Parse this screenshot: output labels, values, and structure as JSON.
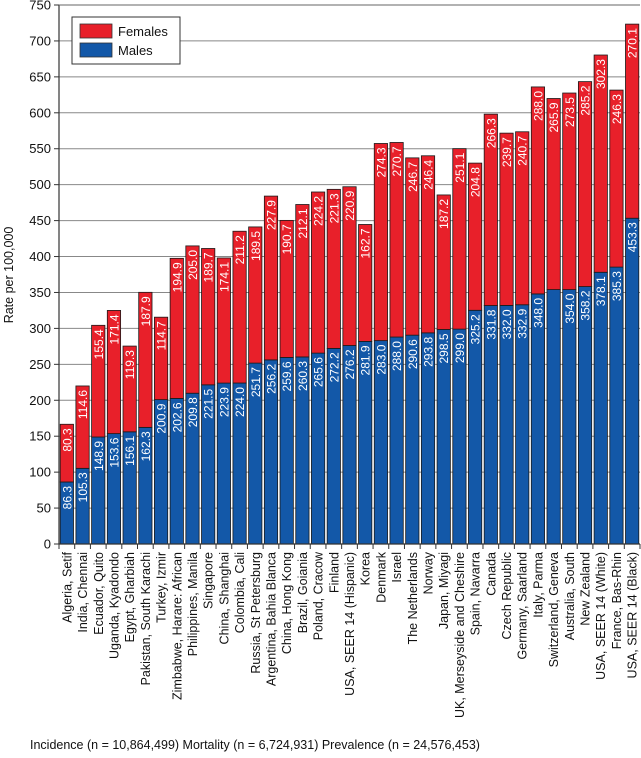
{
  "chart_data": {
    "type": "bar",
    "stacked": true,
    "title": "",
    "xlabel": "",
    "ylabel": "Rate per 100,000",
    "ylim": [
      0,
      750
    ],
    "yticks": [
      0,
      50,
      100,
      150,
      200,
      250,
      300,
      350,
      400,
      450,
      500,
      550,
      600,
      650,
      700,
      750
    ],
    "grid": true,
    "legend": {
      "placement": "top-left",
      "entries": [
        "Females",
        "Males"
      ]
    },
    "categories": [
      "Algeria, Setif",
      "India, Chennai",
      "Ecuador, Quito",
      "Uganda, Kyadondo",
      "Egypt, Gharbiah",
      "Pakistan, South Karachi",
      "Turkey, Izmir",
      "Zimbabwe, Harare: African",
      "Philippines, Manila",
      "Singapore",
      "China, Shanghai",
      "Colombia, Cali",
      "Russia, St Petersburg",
      "Argentina, Bahia Blanca",
      "China, Hong Kong",
      "Brazil, Goiania",
      "Poland, Cracow",
      "Finland",
      "USA, SEER 14 (Hispanic)",
      "Korea",
      "Denmark",
      "Israel",
      "The Netherlands",
      "Norway",
      "Japan, Miyagi",
      "UK, Merseyside and Cheshire",
      "Spain, Navarra",
      "Canada",
      "Czech Republic",
      "Germany, Saarland",
      "Italy, Parma",
      "Switzerland, Geneva",
      "Australia, South",
      "New Zealand",
      "USA, SEER 14 (White)",
      "France, Bas-Rhin",
      "USA, SEER 14 (Black)"
    ],
    "series": [
      {
        "name": "Males",
        "color": "#1358a8",
        "values": [
          86.3,
          105.3,
          148.9,
          153.6,
          156.1,
          162.3,
          200.9,
          202.6,
          209.8,
          221.5,
          223.9,
          224.0,
          251.7,
          256.2,
          259.6,
          260.3,
          265.6,
          272.2,
          276.2,
          281.9,
          283.0,
          288.0,
          290.6,
          293.8,
          298.5,
          299.0,
          325.2,
          331.8,
          332.0,
          332.9,
          348.0,
          354.0,
          354.0,
          358.2,
          378.1,
          385.3,
          453.3
        ],
        "labels": [
          "86.3",
          "105.3",
          "148.9",
          "153.6",
          "156.1",
          "162.3",
          "200.9",
          "202.6",
          "209.8",
          "221.5",
          "223.9",
          "224.0",
          "251.7",
          "256.2",
          "259.6",
          "260.3",
          "265.6",
          "272.2",
          "276.2",
          "281.9",
          "283.0",
          "288.0",
          "290.6",
          "293.8",
          "298.5",
          "299.0",
          "325.2",
          "331.8",
          "332.0",
          "332.9",
          "348.0",
          "",
          "354.0",
          "358.2",
          "378.1",
          "385.3",
          "453.3"
        ]
      },
      {
        "name": "Females",
        "color": "#e8202a",
        "values": [
          80.3,
          114.6,
          155.4,
          171.4,
          119.3,
          187.9,
          114.7,
          194.9,
          205.0,
          189.7,
          174.1,
          211.2,
          189.5,
          227.9,
          190.7,
          212.1,
          224.2,
          221.3,
          220.9,
          162.7,
          274.3,
          270.7,
          246.7,
          246.4,
          187.2,
          251.1,
          204.8,
          266.3,
          239.7,
          240.7,
          288.0,
          265.9,
          273.5,
          285.2,
          302.3,
          246.3,
          270.1
        ],
        "labels": [
          "80.3",
          "114.6",
          "155.4",
          "171.4",
          "119.3",
          "187.9",
          "114.7",
          "194.9",
          "205.0",
          "189.7",
          "174.1",
          "211.2",
          "189.5",
          "227.9",
          "190.7",
          "212.1",
          "224.2",
          "221.3",
          "220.9",
          "162.7",
          "274.3",
          "270.7",
          "246.7",
          "246.4",
          "187.2",
          "251.1",
          "204.8",
          "266.3",
          "239.7",
          "240.7",
          "288.0",
          "265.9",
          "273.5",
          "285.2",
          "302.3",
          "246.3",
          "270.1"
        ]
      }
    ],
    "footnote": "Incidence (n = 10,864,499) Mortality (n = 6,724,931) Prevalence (n = 24,576,453)"
  }
}
